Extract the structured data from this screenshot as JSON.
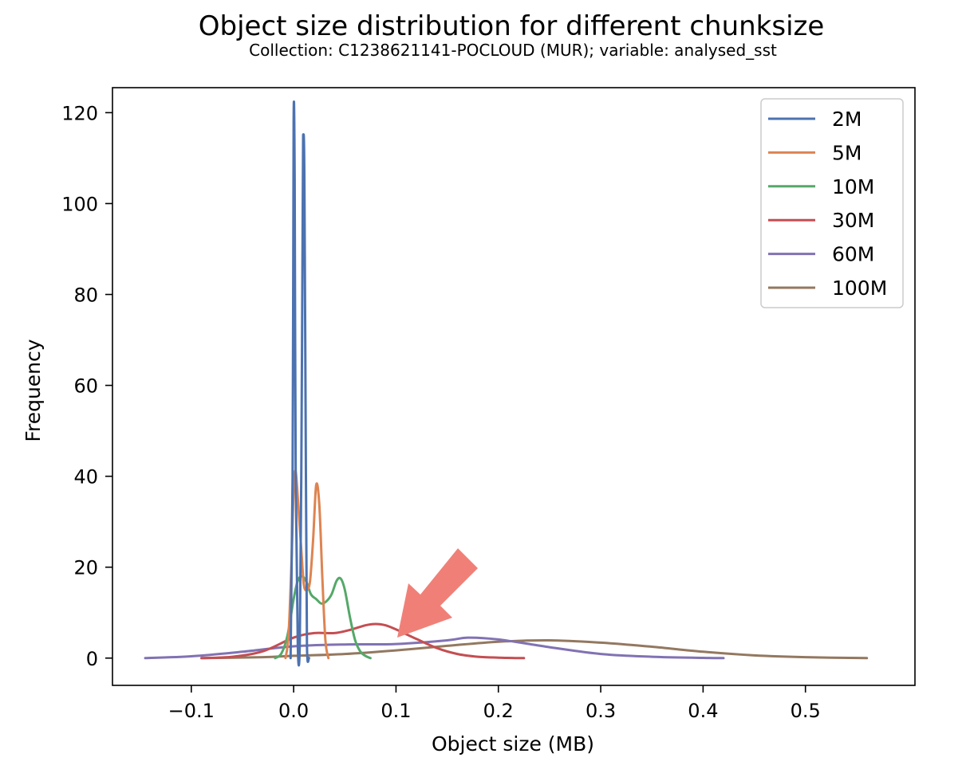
{
  "chart_data": {
    "type": "line",
    "title": "Object size distribution for different chunksize",
    "subtitle": "Collection: C1238621141-POCLOUD (MUR); variable: analysed_sst",
    "xlabel": "Object size (MB)",
    "ylabel": "Frequency",
    "xlim": [
      -0.177,
      0.607
    ],
    "ylim": [
      -6,
      125.5
    ],
    "x_ticks": [
      -0.1,
      0.0,
      0.1,
      0.2,
      0.3,
      0.4,
      0.5
    ],
    "x_tick_labels": [
      "−0.1",
      "0.0",
      "0.1",
      "0.2",
      "0.3",
      "0.4",
      "0.5"
    ],
    "y_ticks": [
      0,
      20,
      40,
      60,
      80,
      100,
      120
    ],
    "y_tick_labels": [
      "0",
      "20",
      "40",
      "60",
      "80",
      "100",
      "120"
    ],
    "grid": false,
    "legend_position": "top-right",
    "annotation": "red arrow pointing at the 30M peak",
    "series": [
      {
        "name": "2M",
        "color": "#4c72b0",
        "x": [
          -0.003,
          -0.001,
          0.0,
          0.001,
          0.002,
          0.004,
          0.006,
          0.0075,
          0.009,
          0.0095,
          0.0105,
          0.012,
          0.013,
          0.015
        ],
        "y": [
          0,
          40,
          118,
          105,
          40,
          3,
          3,
          40,
          105,
          115,
          105,
          40,
          3,
          0
        ]
      },
      {
        "name": "5M",
        "color": "#dd8452",
        "x": [
          -0.008,
          -0.005,
          -0.002,
          0.0,
          0.002,
          0.005,
          0.008,
          0.01,
          0.013,
          0.016,
          0.019,
          0.022,
          0.025,
          0.028,
          0.031,
          0.034
        ],
        "y": [
          0,
          5,
          22,
          37,
          41,
          32,
          22,
          16,
          15,
          17,
          26,
          38,
          34,
          18,
          4,
          0
        ]
      },
      {
        "name": "10M",
        "color": "#55a868",
        "x": [
          -0.018,
          -0.012,
          -0.006,
          0.0,
          0.004,
          0.008,
          0.012,
          0.017,
          0.022,
          0.027,
          0.032,
          0.037,
          0.042,
          0.046,
          0.05,
          0.055,
          0.06,
          0.065,
          0.07,
          0.075
        ],
        "y": [
          0,
          1,
          5,
          13,
          17,
          18,
          17,
          14,
          13,
          12,
          12.5,
          14,
          17,
          17.5,
          15,
          9,
          4,
          1.5,
          0.5,
          0
        ]
      },
      {
        "name": "30M",
        "color": "#c44e52",
        "x": [
          -0.09,
          -0.06,
          -0.03,
          0.0,
          0.02,
          0.04,
          0.055,
          0.07,
          0.08,
          0.09,
          0.1,
          0.12,
          0.14,
          0.16,
          0.18,
          0.2,
          0.225
        ],
        "y": [
          0,
          0.3,
          1.5,
          4.5,
          5.5,
          5.5,
          6.2,
          7.2,
          7.5,
          7.2,
          6.3,
          4.2,
          2.2,
          0.9,
          0.3,
          0.1,
          0
        ]
      },
      {
        "name": "60M",
        "color": "#8172b3",
        "x": [
          -0.145,
          -0.1,
          -0.05,
          0.0,
          0.05,
          0.1,
          0.15,
          0.17,
          0.2,
          0.25,
          0.3,
          0.35,
          0.4,
          0.42
        ],
        "y": [
          0,
          0.4,
          1.4,
          2.6,
          3.0,
          3.1,
          3.9,
          4.5,
          4.1,
          2.4,
          0.9,
          0.3,
          0.05,
          0
        ]
      },
      {
        "name": "100M",
        "color": "#937860",
        "x": [
          -0.09,
          -0.03,
          0.0,
          0.05,
          0.1,
          0.15,
          0.2,
          0.25,
          0.3,
          0.35,
          0.4,
          0.45,
          0.5,
          0.56
        ],
        "y": [
          0,
          0.2,
          0.5,
          0.9,
          1.7,
          2.7,
          3.6,
          3.9,
          3.4,
          2.5,
          1.4,
          0.6,
          0.2,
          0
        ]
      }
    ]
  }
}
